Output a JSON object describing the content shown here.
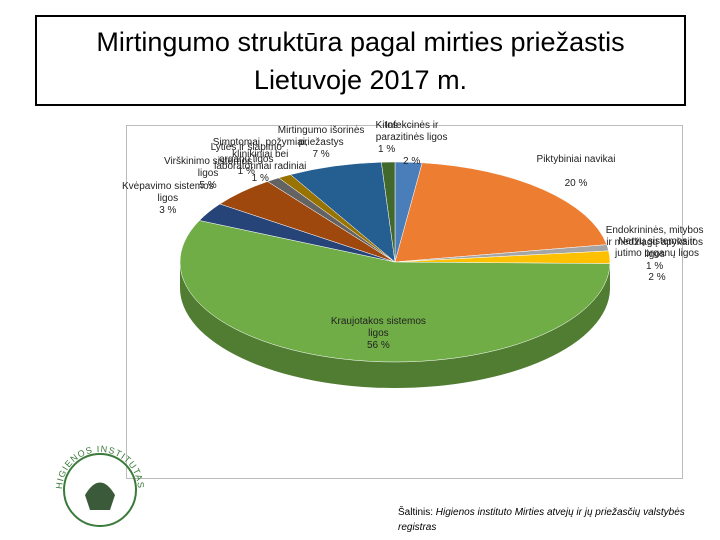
{
  "chart_data": {
    "type": "pie",
    "title": "Mirtingumo struktūra pagal mirties priežastis Lietuvoje 2017 m.",
    "categories": [
      "Infekcinės ir parazitinės ligos",
      "Piktybiniai navikai",
      "Endokrininės, mitybos ir medžiagų apykaitos ligos",
      "Nervų sistemos ir jutimo organų ligos",
      "Kraujotakos sistemos ligos",
      "Kvėpavimo sistemos ligos",
      "Virškinimo sistemos ligos",
      "Lyties ir šlapimo organų ligos",
      "Simptomai, požymiai, klinikiniai bei laboratoriniai radiniai",
      "Mirtingumo išorinės priežastys",
      "Kitos"
    ],
    "values": [
      2,
      20,
      1,
      2,
      56,
      3,
      5,
      1,
      1,
      7,
      1
    ],
    "value_labels": [
      "2 %",
      "20 %",
      "1 %",
      "2 %",
      "56 %",
      "3 %",
      "5 %",
      "1 %",
      "1 %",
      "7 %",
      "1 %"
    ],
    "colors": [
      "#4a7ebb",
      "#ed7d31",
      "#a5a5a5",
      "#ffc000",
      "#70ad47",
      "#264478",
      "#9e480e",
      "#636363",
      "#997300",
      "#255e91",
      "#43682b"
    ],
    "source_label": "Šaltinis:",
    "source": "Higienos instituto Mirties atvejų ir jų priežasčių valstybės registras",
    "logo_text": "HIGIENOS INSTITUTAS"
  }
}
